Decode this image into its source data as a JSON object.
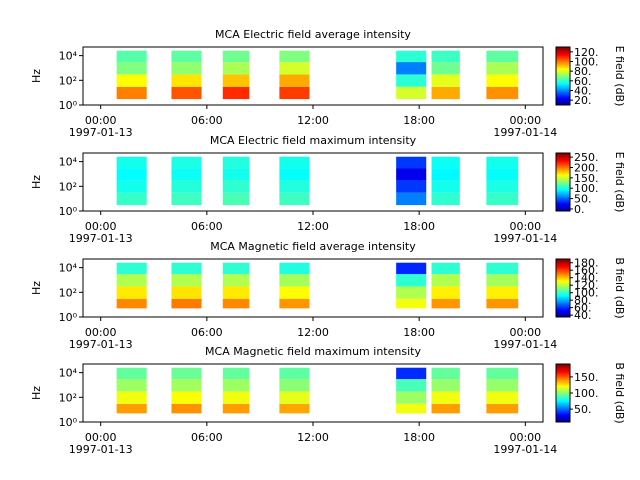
{
  "chart_data": [
    {
      "type": "spectrogram",
      "title": "MCA  Electric field average intensity",
      "ylabel": "Hz",
      "zlabel": "E field (dB)",
      "xlim": [
        -1,
        25
      ],
      "xticks": [
        {
          "value": 0,
          "label": "00:00"
        },
        {
          "value": 6,
          "label": "06:00"
        },
        {
          "value": 12,
          "label": "12:00"
        },
        {
          "value": 18,
          "label": "18:00"
        },
        {
          "value": 24,
          "label": "00:00"
        }
      ],
      "date_labels": [
        {
          "value": 0,
          "label": "1997-01-13"
        },
        {
          "value": 24,
          "label": "1997-01-14"
        }
      ],
      "ylim": [
        1,
        50000
      ],
      "log_y": true,
      "yticks": [
        {
          "value": 1,
          "label": "10⁰"
        },
        {
          "value": 100,
          "label": "10²"
        },
        {
          "value": 10000,
          "label": "10⁴"
        }
      ],
      "zlim": [
        10,
        130
      ],
      "zticks": [
        {
          "value": 20,
          "label": "20."
        },
        {
          "value": 40,
          "label": "40."
        },
        {
          "value": 60,
          "label": "60."
        },
        {
          "value": 80,
          "label": "80."
        },
        {
          "value": 100,
          "label": "100."
        },
        {
          "value": 120,
          "label": "120."
        }
      ],
      "freq_bins": [
        3,
        30,
        300,
        3000,
        25000
      ],
      "intervals": [
        [
          0.9,
          2.6
        ],
        [
          4.0,
          5.7
        ],
        [
          6.9,
          8.4
        ],
        [
          10.1,
          11.8
        ],
        [
          16.7,
          18.4
        ],
        [
          18.7,
          20.3
        ],
        [
          21.8,
          23.6
        ]
      ],
      "values": [
        [
          100,
          85,
          70,
          65
        ],
        [
          105,
          88,
          72,
          66
        ],
        [
          110,
          92,
          75,
          68
        ],
        [
          108,
          95,
          80,
          70
        ],
        [
          80,
          60,
          40,
          60
        ],
        [
          95,
          82,
          68,
          62
        ],
        [
          98,
          85,
          75,
          66
        ]
      ]
    },
    {
      "type": "spectrogram",
      "title": "MCA  Electric field maximum intensity",
      "ylabel": "Hz",
      "zlabel": "E field (dB)",
      "xlim": [
        -1,
        25
      ],
      "xticks": [
        {
          "value": 0,
          "label": "00:00"
        },
        {
          "value": 6,
          "label": "06:00"
        },
        {
          "value": 12,
          "label": "12:00"
        },
        {
          "value": 18,
          "label": "18:00"
        },
        {
          "value": 24,
          "label": "00:00"
        }
      ],
      "date_labels": [
        {
          "value": 0,
          "label": "1997-01-13"
        },
        {
          "value": 24,
          "label": "1997-01-14"
        }
      ],
      "ylim": [
        1,
        50000
      ],
      "log_y": true,
      "yticks": [
        {
          "value": 1,
          "label": "10⁰"
        },
        {
          "value": 100,
          "label": "10²"
        },
        {
          "value": 10000,
          "label": "10⁴"
        }
      ],
      "zlim": [
        -10,
        270
      ],
      "zticks": [
        {
          "value": 0,
          "label": "0."
        },
        {
          "value": 50,
          "label": "50."
        },
        {
          "value": 100,
          "label": "100."
        },
        {
          "value": 150,
          "label": "150."
        },
        {
          "value": 200,
          "label": "200."
        },
        {
          "value": 250,
          "label": "250."
        }
      ],
      "freq_bins": [
        3,
        30,
        300,
        3000,
        25000
      ],
      "intervals": [
        [
          0.9,
          2.6
        ],
        [
          4.0,
          5.7
        ],
        [
          6.9,
          8.4
        ],
        [
          10.1,
          11.8
        ],
        [
          16.7,
          18.4
        ],
        [
          18.7,
          20.3
        ],
        [
          21.8,
          23.6
        ]
      ],
      "values": [
        [
          110,
          100,
          95,
          100
        ],
        [
          112,
          105,
          98,
          102
        ],
        [
          115,
          108,
          100,
          104
        ],
        [
          112,
          104,
          96,
          100
        ],
        [
          60,
          40,
          20,
          40
        ],
        [
          108,
          100,
          94,
          98
        ],
        [
          110,
          102,
          96,
          100
        ]
      ]
    },
    {
      "type": "spectrogram",
      "title": "MCA  Magnetic field average intensity",
      "ylabel": "Hz",
      "zlabel": "B field (dB)",
      "xlim": [
        -1,
        25
      ],
      "xticks": [
        {
          "value": 0,
          "label": "00:00"
        },
        {
          "value": 6,
          "label": "06:00"
        },
        {
          "value": 12,
          "label": "12:00"
        },
        {
          "value": 18,
          "label": "18:00"
        },
        {
          "value": 24,
          "label": "00:00"
        }
      ],
      "date_labels": [
        {
          "value": 0,
          "label": "1997-01-13"
        },
        {
          "value": 24,
          "label": "1997-01-14"
        }
      ],
      "ylim": [
        1,
        50000
      ],
      "log_y": true,
      "yticks": [
        {
          "value": 1,
          "label": "10⁰"
        },
        {
          "value": 100,
          "label": "10²"
        },
        {
          "value": 10000,
          "label": "10⁴"
        }
      ],
      "zlim": [
        35,
        190
      ],
      "zticks": [
        {
          "value": 40,
          "label": "40."
        },
        {
          "value": 60,
          "label": "60."
        },
        {
          "value": 80,
          "label": "80."
        },
        {
          "value": 100,
          "label": "100."
        },
        {
          "value": 120,
          "label": "120."
        },
        {
          "value": 140,
          "label": "140."
        },
        {
          "value": 160,
          "label": "160."
        },
        {
          "value": 180,
          "label": "180."
        }
      ],
      "freq_bins": [
        5,
        30,
        300,
        3000,
        25000
      ],
      "intervals": [
        [
          0.9,
          2.6
        ],
        [
          4.0,
          5.7
        ],
        [
          6.9,
          8.4
        ],
        [
          10.1,
          11.8
        ],
        [
          16.7,
          18.4
        ],
        [
          18.7,
          20.3
        ],
        [
          21.8,
          23.6
        ]
      ],
      "values": [
        [
          150,
          135,
          120,
          100
        ],
        [
          152,
          136,
          120,
          100
        ],
        [
          150,
          135,
          120,
          100
        ],
        [
          148,
          132,
          118,
          98
        ],
        [
          130,
          120,
          100,
          60
        ],
        [
          148,
          134,
          120,
          100
        ],
        [
          148,
          134,
          118,
          100
        ]
      ]
    },
    {
      "type": "spectrogram",
      "title": "MCA  Magnetic field maximum intensity",
      "ylabel": "Hz",
      "zlabel": "B field (dB)",
      "xlim": [
        -1,
        25
      ],
      "xticks": [
        {
          "value": 0,
          "label": "00:00"
        },
        {
          "value": 6,
          "label": "06:00"
        },
        {
          "value": 12,
          "label": "12:00"
        },
        {
          "value": 18,
          "label": "18:00"
        },
        {
          "value": 24,
          "label": "00:00"
        }
      ],
      "date_labels": [
        {
          "value": 0,
          "label": "1997-01-13"
        },
        {
          "value": 24,
          "label": "1997-01-14"
        }
      ],
      "ylim": [
        1,
        50000
      ],
      "log_y": true,
      "yticks": [
        {
          "value": 1,
          "label": "10⁰"
        },
        {
          "value": 100,
          "label": "10²"
        },
        {
          "value": 10000,
          "label": "10⁴"
        }
      ],
      "zlim": [
        10,
        190
      ],
      "zticks": [
        {
          "value": 50,
          "label": "50."
        },
        {
          "value": 100,
          "label": "100."
        },
        {
          "value": 150,
          "label": "150."
        }
      ],
      "freq_bins": [
        5,
        30,
        300,
        3000,
        25000
      ],
      "intervals": [
        [
          0.9,
          2.6
        ],
        [
          4.0,
          5.7
        ],
        [
          6.9,
          8.4
        ],
        [
          10.1,
          11.8
        ],
        [
          16.7,
          18.4
        ],
        [
          18.7,
          20.3
        ],
        [
          21.8,
          23.6
        ]
      ],
      "values": [
        [
          140,
          120,
          105,
          95
        ],
        [
          142,
          122,
          106,
          96
        ],
        [
          140,
          120,
          105,
          95
        ],
        [
          138,
          118,
          102,
          94
        ],
        [
          120,
          105,
          90,
          40
        ],
        [
          140,
          120,
          104,
          95
        ],
        [
          140,
          120,
          104,
          95
        ]
      ]
    }
  ]
}
